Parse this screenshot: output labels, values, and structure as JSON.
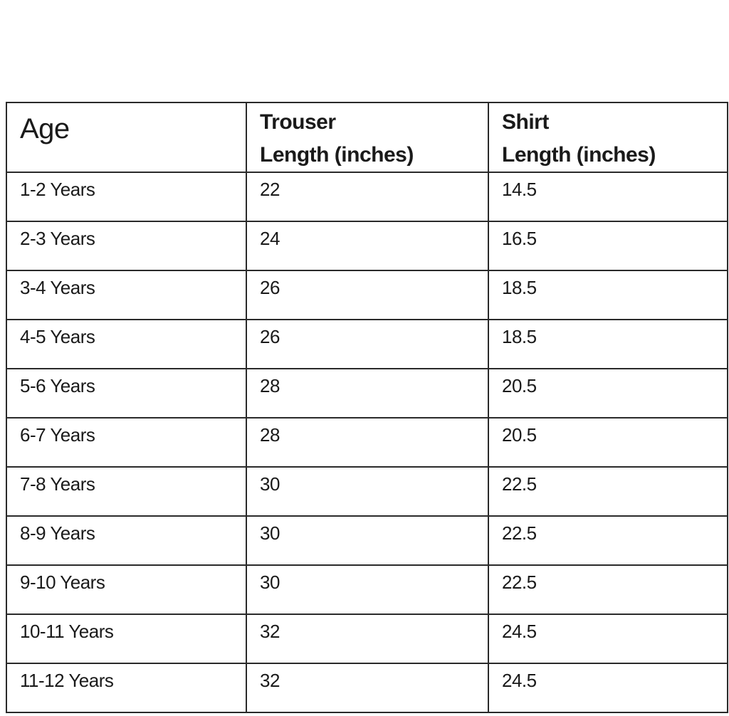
{
  "table": {
    "headers": [
      {
        "line1": "Age",
        "line2": ""
      },
      {
        "line1": "Trouser",
        "line2": "Length (inches)"
      },
      {
        "line1": "Shirt",
        "line2": "Length (inches)"
      }
    ],
    "rows": [
      [
        "1-2 Years",
        "22",
        "14.5"
      ],
      [
        "2-3 Years",
        "24",
        "16.5"
      ],
      [
        "3-4 Years",
        "26",
        "18.5"
      ],
      [
        "4-5 Years",
        "26",
        "18.5"
      ],
      [
        "5-6 Years",
        "28",
        "20.5"
      ],
      [
        "6-7 Years",
        "28",
        "20.5"
      ],
      [
        "7-8 Years",
        "30",
        "22.5"
      ],
      [
        "8-9 Years",
        "30",
        "22.5"
      ],
      [
        "9-10 Years",
        "30",
        "22.5"
      ],
      [
        "10-11 Years",
        "32",
        "24.5"
      ],
      [
        "11-12 Years",
        "32",
        "24.5"
      ]
    ]
  }
}
